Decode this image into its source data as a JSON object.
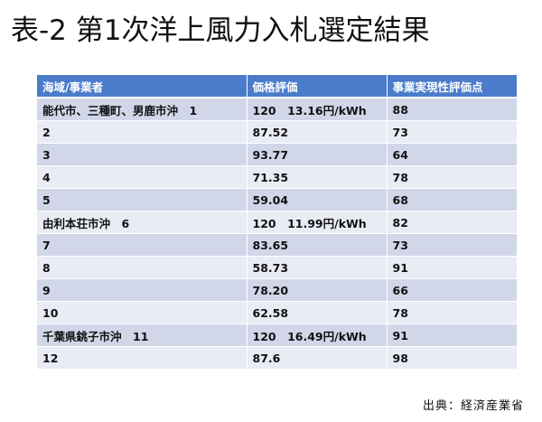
{
  "title": "表-2 第1次洋上風力入札選定結果",
  "table": {
    "headers": [
      "海域/事業者",
      "価格評価",
      "事業実現性評価点"
    ],
    "rows": [
      {
        "area": "能代市、三種町、男鹿市沖　1",
        "price": "120　13.16円/kWh",
        "score": "88"
      },
      {
        "area": "2",
        "price": "87.52",
        "score": "73"
      },
      {
        "area": "3",
        "price": "93.77",
        "score": "64"
      },
      {
        "area": "4",
        "price": "71.35",
        "score": "78"
      },
      {
        "area": "5",
        "price": "59.04",
        "score": "68"
      },
      {
        "area": "由利本荘市沖　6",
        "price": "120　11.99円/kWh",
        "score": "82"
      },
      {
        "area": "7",
        "price": "83.65",
        "score": "73"
      },
      {
        "area": "8",
        "price": "58.73",
        "score": "91"
      },
      {
        "area": "9",
        "price": "78.20",
        "score": "66"
      },
      {
        "area": "10",
        "price": "62.58",
        "score": "78"
      },
      {
        "area": "千葉県銚子市沖　11",
        "price": "120　16.49円/kWh",
        "score": "91"
      },
      {
        "area": "12",
        "price": "87.6",
        "score": "98"
      }
    ]
  },
  "source": "出典：経済産業省"
}
